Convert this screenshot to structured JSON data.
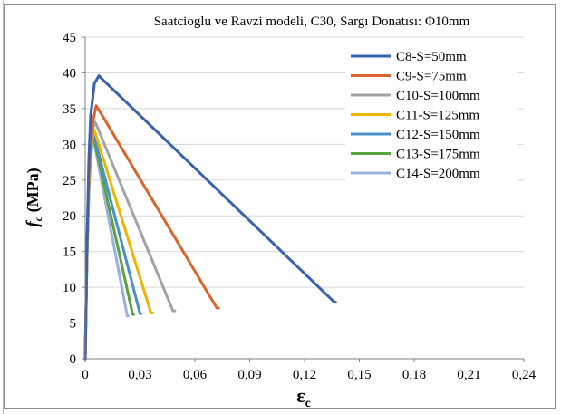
{
  "chart_data": {
    "type": "line",
    "title": "Saatcioglu ve Ravzi modeli, C30, Sargı Donatısı: Φ10mm",
    "ylabel": {
      "main": "f",
      "sub": "c",
      "rest": " (MPa)"
    },
    "xlabel": {
      "main": "ε",
      "sub": "c"
    },
    "xlim": [
      0,
      0.24
    ],
    "ylim": [
      0,
      45
    ],
    "x_ticks": [
      "0",
      "0,03",
      "0,06",
      "0,09",
      "0,12",
      "0,15",
      "0,18",
      "0,21",
      "0,24"
    ],
    "y_ticks": [
      "0",
      "5",
      "10",
      "15",
      "20",
      "25",
      "30",
      "35",
      "40",
      "45"
    ],
    "grid": "horizontal",
    "legend_position": "top-right",
    "series": [
      {
        "name": "C8-S=50mm",
        "color": "#3a62ad",
        "points": [
          [
            0,
            0
          ],
          [
            0.001,
            16
          ],
          [
            0.002,
            28
          ],
          [
            0.003,
            34
          ],
          [
            0.005,
            38.5
          ],
          [
            0.0075,
            39.6
          ],
          [
            0.009,
            39.2
          ],
          [
            0.136,
            8
          ],
          [
            0.137,
            7.9
          ]
        ]
      },
      {
        "name": "C9-S=75mm",
        "color": "#d9652b",
        "points": [
          [
            0,
            0
          ],
          [
            0.001,
            16
          ],
          [
            0.002,
            26
          ],
          [
            0.004,
            33
          ],
          [
            0.006,
            35.4
          ],
          [
            0.008,
            34.6
          ],
          [
            0.072,
            7.1
          ],
          [
            0.073,
            7.1
          ]
        ]
      },
      {
        "name": "C10-S=100mm",
        "color": "#a3a3a3",
        "points": [
          [
            0,
            0
          ],
          [
            0.001,
            15
          ],
          [
            0.002,
            25
          ],
          [
            0.003,
            30
          ],
          [
            0.005,
            33.2
          ],
          [
            0.006,
            32.8
          ],
          [
            0.048,
            6.7
          ],
          [
            0.049,
            6.7
          ]
        ]
      },
      {
        "name": "C11-S=125mm",
        "color": "#f0b400",
        "points": [
          [
            0,
            0
          ],
          [
            0.001,
            15
          ],
          [
            0.002,
            24
          ],
          [
            0.003,
            29
          ],
          [
            0.0045,
            32.1
          ],
          [
            0.0055,
            31.6
          ],
          [
            0.036,
            6.4
          ],
          [
            0.037,
            6.4
          ]
        ]
      },
      {
        "name": "C12-S=150mm",
        "color": "#4a8fc8",
        "points": [
          [
            0,
            0
          ],
          [
            0.001,
            15
          ],
          [
            0.002,
            24
          ],
          [
            0.003,
            28.5
          ],
          [
            0.004,
            31.4
          ],
          [
            0.005,
            31
          ],
          [
            0.03,
            6.3
          ],
          [
            0.0305,
            6.3
          ]
        ]
      },
      {
        "name": "C13-S=175mm",
        "color": "#5aa33f",
        "points": [
          [
            0,
            0
          ],
          [
            0.001,
            15
          ],
          [
            0.002,
            24
          ],
          [
            0.003,
            28.5
          ],
          [
            0.004,
            31
          ],
          [
            0.005,
            30.5
          ],
          [
            0.026,
            6.2
          ],
          [
            0.0265,
            6.2
          ]
        ]
      },
      {
        "name": "C14-S=200mm",
        "color": "#97b0dc",
        "points": [
          [
            0,
            0
          ],
          [
            0.001,
            14
          ],
          [
            0.002,
            23
          ],
          [
            0.003,
            28
          ],
          [
            0.004,
            30.6
          ],
          [
            0.005,
            30.1
          ],
          [
            0.023,
            6
          ],
          [
            0.0235,
            6
          ]
        ]
      }
    ]
  }
}
